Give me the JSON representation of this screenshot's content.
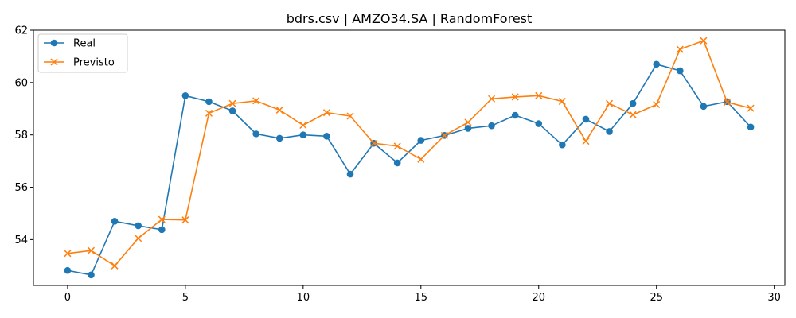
{
  "chart_data": {
    "type": "line",
    "title": "bdrs.csv | AMZO34.SA | RandomForest",
    "xlabel": "",
    "ylabel": "",
    "xlim": [
      -1.45,
      30.45
    ],
    "ylim": [
      52.25,
      62.0
    ],
    "xticks": [
      0,
      5,
      10,
      15,
      20,
      25,
      30
    ],
    "yticks": [
      54,
      56,
      58,
      60,
      62
    ],
    "grid": false,
    "legend_position": "top-left",
    "x": [
      0,
      1,
      2,
      3,
      4,
      5,
      6,
      7,
      8,
      9,
      10,
      11,
      12,
      13,
      14,
      15,
      16,
      17,
      18,
      19,
      20,
      21,
      22,
      23,
      24,
      25,
      26,
      27,
      28,
      29
    ],
    "series": [
      {
        "name": "Real",
        "color": "#1f77b4",
        "marker": "circle",
        "values": [
          52.82,
          52.65,
          54.7,
          54.53,
          54.38,
          59.5,
          59.27,
          58.92,
          58.04,
          57.87,
          58.0,
          57.95,
          56.5,
          57.68,
          56.93,
          57.79,
          57.98,
          58.25,
          58.35,
          58.75,
          58.43,
          57.62,
          58.6,
          58.13,
          59.2,
          60.7,
          60.45,
          59.09,
          59.27,
          58.3
        ]
      },
      {
        "name": "Previsto",
        "color": "#ff7f0e",
        "marker": "x",
        "values": [
          53.47,
          53.58,
          53.0,
          54.05,
          54.77,
          54.75,
          58.83,
          59.2,
          59.3,
          58.95,
          58.37,
          58.85,
          58.72,
          57.68,
          57.57,
          57.07,
          57.98,
          58.48,
          59.38,
          59.45,
          59.5,
          59.28,
          57.76,
          59.2,
          58.77,
          59.16,
          61.27,
          61.6,
          59.25,
          59.02
        ]
      }
    ]
  }
}
